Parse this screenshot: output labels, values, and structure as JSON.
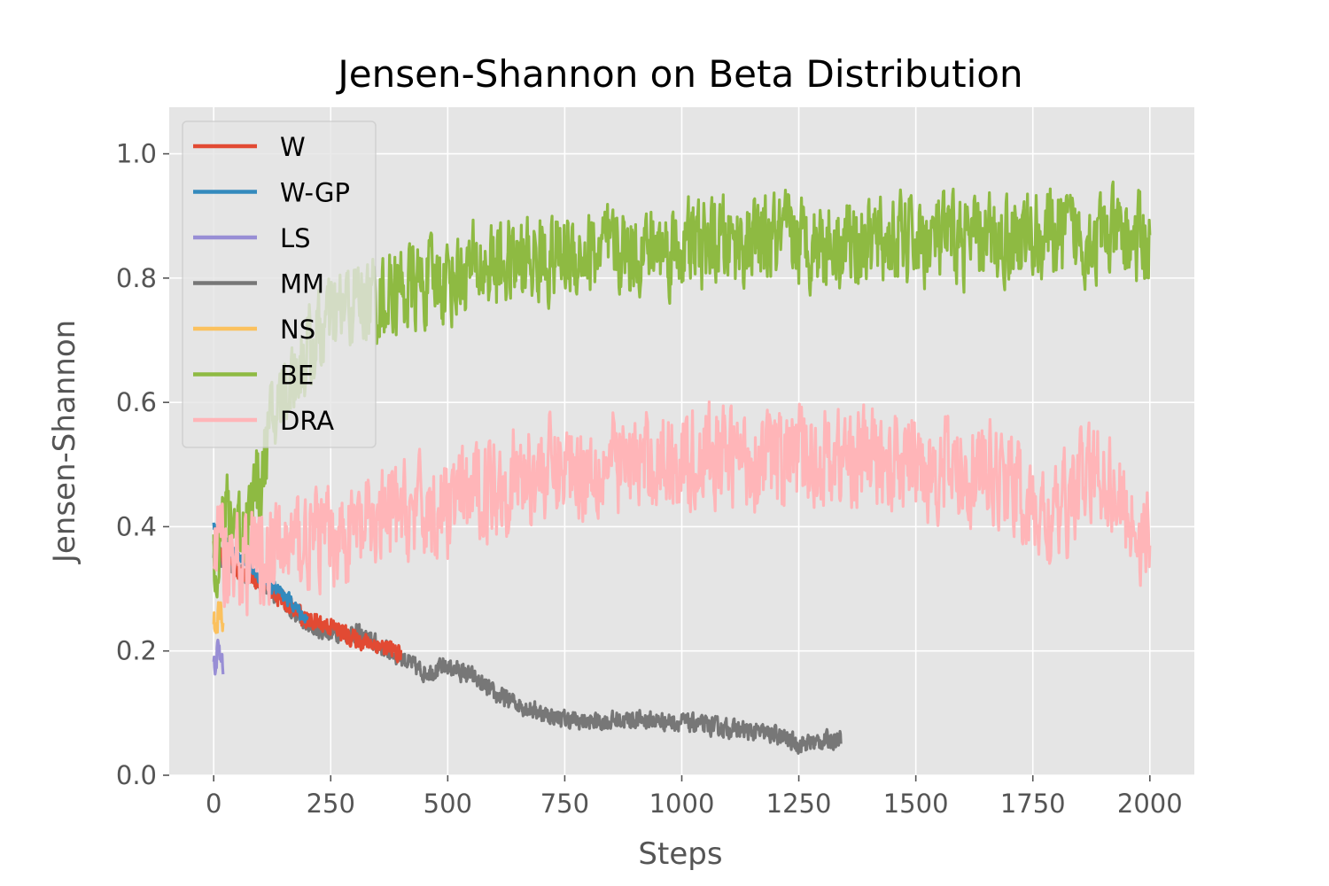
{
  "chart_data": {
    "type": "line",
    "title": "Jensen-Shannon on Beta Distribution",
    "xlabel": "Steps",
    "ylabel": "Jensen-Shannon",
    "xlim": [
      -95,
      2095
    ],
    "ylim": [
      0.0,
      1.075
    ],
    "xticks": [
      0,
      250,
      500,
      750,
      1000,
      1250,
      1500,
      1750,
      2000
    ],
    "xtick_labels": [
      "0",
      "250",
      "500",
      "750",
      "1000",
      "1250",
      "1500",
      "1750",
      "2000"
    ],
    "yticks": [
      0.0,
      0.2,
      0.4,
      0.6,
      0.8,
      1.0
    ],
    "ytick_labels": [
      "0.0",
      "0.2",
      "0.4",
      "0.6",
      "0.8",
      "1.0"
    ],
    "grid": true,
    "background": "#e5e5e5",
    "legend_position": "top-left",
    "series": [
      {
        "name": "W",
        "color": "#e24a33",
        "noise": 0.008,
        "x": [
          0,
          20,
          50,
          100,
          150,
          200,
          250,
          300,
          350,
          400
        ],
        "y": [
          0.38,
          0.35,
          0.33,
          0.31,
          0.28,
          0.25,
          0.24,
          0.22,
          0.21,
          0.195
        ]
      },
      {
        "name": "W-GP",
        "color": "#348abd",
        "noise": 0.006,
        "x": [
          0,
          20,
          50,
          100,
          150,
          200
        ],
        "y": [
          0.4,
          0.38,
          0.35,
          0.32,
          0.29,
          0.25
        ]
      },
      {
        "name": "LS",
        "color": "#988ed5",
        "noise": 0.012,
        "x": [
          0,
          5,
          10,
          15,
          20
        ],
        "y": [
          0.17,
          0.19,
          0.2,
          0.19,
          0.18
        ]
      },
      {
        "name": "MM",
        "color": "#777777",
        "noise": 0.008,
        "x": [
          0,
          50,
          100,
          150,
          200,
          250,
          300,
          350,
          400,
          450,
          500,
          550,
          600,
          700,
          750,
          800,
          900,
          1000,
          1100,
          1200,
          1250,
          1300,
          1340
        ],
        "y": [
          0.36,
          0.33,
          0.31,
          0.28,
          0.24,
          0.23,
          0.23,
          0.21,
          0.19,
          0.165,
          0.175,
          0.16,
          0.13,
          0.1,
          0.09,
          0.085,
          0.09,
          0.085,
          0.075,
          0.065,
          0.05,
          0.055,
          0.06
        ]
      },
      {
        "name": "NS",
        "color": "#fbc15e",
        "noise": 0.015,
        "x": [
          0,
          5,
          10,
          15,
          20
        ],
        "y": [
          0.23,
          0.25,
          0.26,
          0.25,
          0.24
        ]
      },
      {
        "name": "BE",
        "color": "#8eba42",
        "noise": 0.04,
        "x": [
          0,
          30,
          60,
          90,
          120,
          150,
          200,
          250,
          300,
          350,
          400,
          500,
          600,
          700,
          800,
          1000,
          1200,
          1400,
          1600,
          1800,
          2000
        ],
        "y": [
          0.36,
          0.42,
          0.4,
          0.45,
          0.55,
          0.62,
          0.68,
          0.73,
          0.76,
          0.77,
          0.78,
          0.8,
          0.82,
          0.83,
          0.84,
          0.85,
          0.86,
          0.86,
          0.86,
          0.87,
          0.86
        ]
      },
      {
        "name": "DRA",
        "color": "#ffb5b8",
        "noise": 0.045,
        "x": [
          0,
          50,
          100,
          200,
          300,
          400,
          500,
          600,
          700,
          800,
          900,
          1000,
          1100,
          1200,
          1300,
          1400,
          1500,
          1600,
          1700,
          1750,
          1800,
          1850,
          1900,
          1950,
          2000
        ],
        "y": [
          0.38,
          0.34,
          0.35,
          0.38,
          0.39,
          0.42,
          0.43,
          0.47,
          0.49,
          0.5,
          0.5,
          0.51,
          0.51,
          0.51,
          0.51,
          0.51,
          0.5,
          0.49,
          0.48,
          0.42,
          0.41,
          0.47,
          0.49,
          0.42,
          0.37
        ]
      }
    ]
  }
}
